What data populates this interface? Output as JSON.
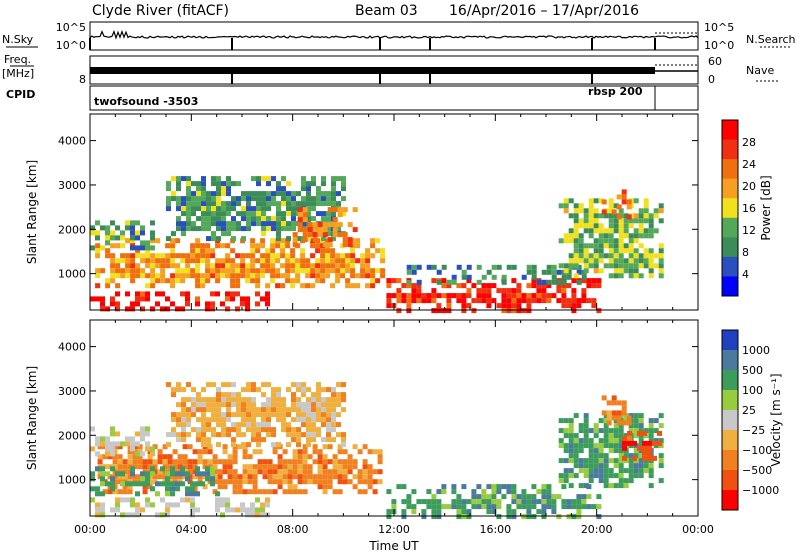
{
  "header": {
    "station": "Clyde River (fitACF)",
    "beam": "Beam 03",
    "dates": "16/Apr/2016 – 17/Apr/2016"
  },
  "strips": {
    "nsky": {
      "label": "N.Sky",
      "left_top": "10^5",
      "left_bottom": "10^0",
      "right_top": "10^5",
      "right_bottom": "10^0",
      "right_label": "N.Search"
    },
    "freq": {
      "label_top": "Freq.",
      "label_unit": "[MHz]",
      "left_top": "",
      "left_bottom": "8",
      "right_top": "60",
      "right_bottom": "0",
      "right_label": "Nave"
    },
    "cpid": {
      "label": "CPID",
      "prog1": "twofsound -3503",
      "prog2": "rbsp 200"
    }
  },
  "colors": {
    "power": [
      "#0000ff",
      "#2a4fbf",
      "#3c8c5a",
      "#53a85a",
      "#f0e020",
      "#f5a020",
      "#f07010",
      "#f03010",
      "#ff0000"
    ],
    "velocity": [
      "#ff0000",
      "#f05010",
      "#f08020",
      "#f0b040",
      "#c8c8c8",
      "#98cc40",
      "#3c9c5c",
      "#4a7a9c",
      "#2040c0"
    ],
    "ground_scatter": "#b4b4b4"
  },
  "chart_data": [
    {
      "type": "heatmap",
      "name_panel": "power",
      "x_unit": "UT hours",
      "xlim": [
        0,
        24
      ],
      "ylim": [
        180,
        4600
      ],
      "ylabel": "Slant Range [km]",
      "yticks": [
        1000,
        2000,
        3000,
        4000
      ],
      "xticks": [
        "00:00",
        "04:00",
        "08:00",
        "12:00",
        "16:00",
        "20:00",
        "00:00"
      ],
      "colorbar": {
        "label": "Power [dB]",
        "ticks": [
          "4",
          "8",
          "12",
          "16",
          "20",
          "24",
          "28"
        ],
        "range": [
          0,
          30
        ]
      },
      "regions": [
        {
          "t0": 0.0,
          "t1": 7.0,
          "r0": 200,
          "r1": 600,
          "level": 29
        },
        {
          "t0": 0.2,
          "t1": 11.5,
          "r0": 700,
          "r1": 1800,
          "level": 20
        },
        {
          "t0": 0.0,
          "t1": 2.5,
          "r0": 1600,
          "r1": 2200,
          "level": 10
        },
        {
          "t0": 3.0,
          "t1": 10.0,
          "r0": 1800,
          "r1": 3200,
          "level": 9
        },
        {
          "t0": 8.0,
          "t1": 10.5,
          "r0": 1700,
          "r1": 2500,
          "level": 22
        },
        {
          "t0": 11.7,
          "t1": 20.0,
          "r0": 200,
          "r1": 900,
          "level": 27
        },
        {
          "t0": 12.5,
          "t1": 19.5,
          "r0": 800,
          "r1": 1200,
          "level": 7
        },
        {
          "t0": 18.5,
          "t1": 22.5,
          "r0": 900,
          "r1": 2700,
          "level": 12
        },
        {
          "t0": 20.2,
          "t1": 21.3,
          "r0": 2300,
          "r1": 2900,
          "level": 22
        }
      ]
    },
    {
      "type": "heatmap",
      "name_panel": "velocity",
      "x_unit": "UT hours",
      "xlim": [
        0,
        24
      ],
      "ylim": [
        180,
        4600
      ],
      "ylabel": "Slant Range [km]",
      "xlabel": "Time UT",
      "yticks": [
        1000,
        2000,
        3000,
        4000
      ],
      "xticks": [
        "00:00",
        "04:00",
        "08:00",
        "12:00",
        "16:00",
        "20:00",
        "00:00"
      ],
      "colorbar": {
        "label": "Velocity [m s⁻¹]",
        "ticks": [
          "1000",
          "500",
          "100",
          "25",
          "−25",
          "−100",
          "−500",
          "−1000"
        ]
      },
      "regions": [
        {
          "t0": 0.0,
          "t1": 7.0,
          "r0": 200,
          "r1": 600,
          "level": 4
        },
        {
          "t0": 0.3,
          "t1": 11.5,
          "r0": 700,
          "r1": 1800,
          "level": 2
        },
        {
          "t0": 0.0,
          "t1": 2.5,
          "r0": 1600,
          "r1": 2200,
          "level": 4
        },
        {
          "t0": 3.0,
          "t1": 10.0,
          "r0": 1800,
          "r1": 3200,
          "level": 3
        },
        {
          "t0": 0.0,
          "t1": 5.0,
          "r0": 700,
          "r1": 1300,
          "level": 6
        },
        {
          "t0": 11.7,
          "t1": 20.0,
          "r0": 200,
          "r1": 900,
          "level": 6
        },
        {
          "t0": 18.5,
          "t1": 22.5,
          "r0": 900,
          "r1": 2500,
          "level": 6
        },
        {
          "t0": 20.2,
          "t1": 21.3,
          "r0": 2300,
          "r1": 2900,
          "level": 2
        },
        {
          "t0": 21.0,
          "t1": 22.5,
          "r0": 1500,
          "r1": 2100,
          "level": 1
        }
      ]
    }
  ]
}
